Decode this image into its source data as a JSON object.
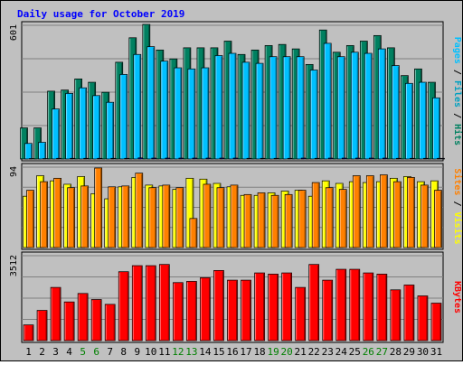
{
  "chart_data": {
    "type": "bar",
    "title": "Daily usage for October 2019",
    "categories": [
      "1",
      "2",
      "3",
      "4",
      "5",
      "6",
      "7",
      "8",
      "9",
      "10",
      "11",
      "12",
      "13",
      "14",
      "15",
      "16",
      "17",
      "18",
      "19",
      "20",
      "21",
      "22",
      "23",
      "24",
      "25",
      "26",
      "27",
      "28",
      "29",
      "30",
      "31"
    ],
    "weekend_days": [
      "5",
      "6",
      "12",
      "13",
      "19",
      "20",
      "26",
      "27"
    ],
    "panels": [
      {
        "id": "pages-files-hits",
        "ymax": 601,
        "ymax_label": "601",
        "right_label_parts": [
          {
            "text": "Pages",
            "color": "#00c0ff"
          },
          {
            "text": " / ",
            "color": "#000000"
          },
          {
            "text": "Files",
            "color": "#00a0c0"
          },
          {
            "text": " / ",
            "color": "#000000"
          },
          {
            "text": "Hits",
            "color": "#008060"
          }
        ],
        "series": [
          {
            "name": "Hits",
            "color": "#008060",
            "values": [
              140,
              140,
              305,
              310,
              360,
              345,
              300,
              435,
              545,
              605,
              490,
              450,
              500,
              500,
              500,
              530,
              470,
              490,
              510,
              515,
              495,
              425,
              580,
              480,
              510,
              530,
              555,
              500,
              375,
              405,
              345
            ]
          },
          {
            "name": "Files",
            "color": "#00c0ff",
            "values": [
              70,
              75,
              225,
              295,
              320,
              285,
              255,
              380,
              470,
              505,
              440,
              410,
              405,
              410,
              465,
              475,
              435,
              430,
              460,
              460,
              460,
              400,
              520,
              460,
              480,
              475,
              495,
              420,
              340,
              345,
              275
            ]
          },
          {
            "name": "Pages",
            "color": "#0000c0",
            "values": [
              2,
              2,
              3,
              3,
              3,
              3,
              3,
              3,
              5,
              4,
              4,
              4,
              4,
              4,
              4,
              4,
              3,
              3,
              3,
              3,
              4,
              3,
              4,
              4,
              4,
              4,
              4,
              3,
              3,
              3,
              3
            ]
          }
        ]
      },
      {
        "id": "visits-sites",
        "ymax": 94,
        "ymax_label": "94",
        "right_label_parts": [
          {
            "text": "Sites",
            "color": "#ff8000"
          },
          {
            "text": " / ",
            "color": "#000000"
          },
          {
            "text": "Visits",
            "color": "#ffff00"
          }
        ],
        "series": [
          {
            "name": "Visits",
            "color": "#ffff00",
            "values": [
              60,
              84,
              78,
              74,
              83,
              63,
              57,
              71,
              82,
              73,
              72,
              68,
              81,
              80,
              75,
              71,
              61,
              61,
              64,
              66,
              67,
              60,
              78,
              75,
              77,
              76,
              77,
              81,
              83,
              77,
              78
            ]
          },
          {
            "name": "Sites",
            "color": "#ff8000",
            "values": [
              67,
              77,
              81,
              70,
              72,
              93,
              71,
              72,
              87,
              70,
              73,
              70,
              34,
              74,
              70,
              73,
              62,
              64,
              61,
              62,
              67,
              76,
              70,
              68,
              84,
              84,
              85,
              77,
              82,
              73,
              67
            ]
          }
        ]
      },
      {
        "id": "kbytes",
        "ymax": 3512,
        "ymax_label": "3512",
        "right_label_parts": [
          {
            "text": "KBytes",
            "color": "#ff0000"
          }
        ],
        "series": [
          {
            "name": "KBytes",
            "color": "#ff0000",
            "values": [
              650,
              1250,
              2200,
              1600,
              1950,
              1700,
              1500,
              2850,
              3100,
              3100,
              3150,
              2400,
              2450,
              2600,
              2900,
              2500,
              2500,
              2800,
              2750,
              2800,
              2200,
              3150,
              2500,
              2950,
              2950,
              2800,
              2750,
              2100,
              2300,
              1850,
              1550
            ]
          }
        ]
      }
    ]
  }
}
